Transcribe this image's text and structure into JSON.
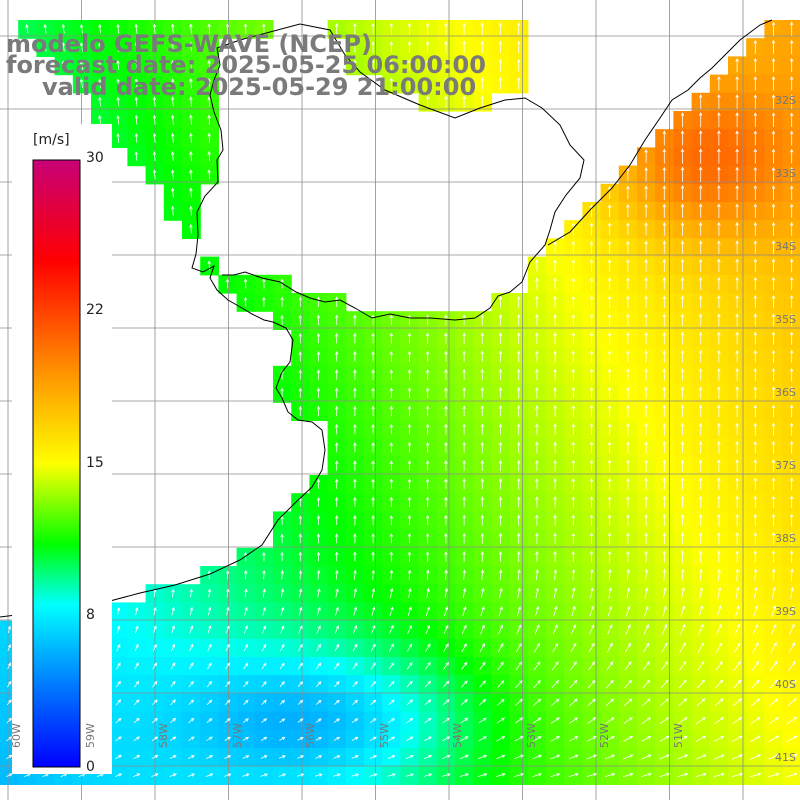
{
  "title": {
    "line1": "modelo GEFS-WAVE (NCEP)",
    "line2": "forecast date: 2025-05-25 06:00:00",
    "line3": "valid date: 2025-05-29 21:00:00"
  },
  "colorbar": {
    "unit": "[m/s]",
    "ticks": [
      "30",
      "22",
      "15",
      "8",
      "0"
    ],
    "min": 0,
    "max": 30
  },
  "lat_labels": [
    "32S",
    "33S",
    "34S",
    "35S",
    "36S",
    "37S",
    "38S",
    "39S",
    "40S",
    "41S"
  ],
  "lon_labels": [
    "60W",
    "59W",
    "58W",
    "57W",
    "56W",
    "55W",
    "54W",
    "53W",
    "52W",
    "51W"
  ],
  "colors": {
    "land": "#ffffff",
    "grid": "#8c8c8c",
    "coast": "#000000",
    "arrows": "#ffffff",
    "title": "#7a7a7a"
  }
}
